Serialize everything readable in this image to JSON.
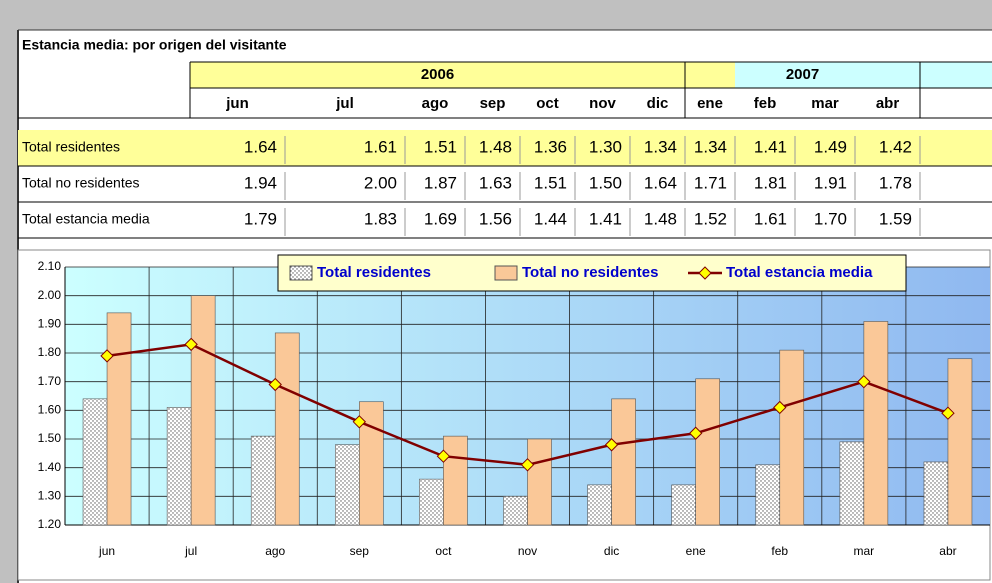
{
  "table": {
    "title": "Estancia media: por origen del visitante",
    "years": [
      {
        "label": "2006",
        "span": 7
      },
      {
        "label": "2007",
        "span": 4
      }
    ],
    "months": [
      "jun",
      "jul",
      "ago",
      "sep",
      "oct",
      "nov",
      "dic",
      "ene",
      "feb",
      "mar",
      "abr"
    ],
    "rows": [
      {
        "label": "Total residentes",
        "cells": [
          "1.64",
          "1.61",
          "1.51",
          "1.48",
          "1.36",
          "1.30",
          "1.34",
          "1.34",
          "1.41",
          "1.49",
          "1.42"
        ]
      },
      {
        "label": "Total no residentes",
        "cells": [
          "1.94",
          "2.00",
          "1.87",
          "1.63",
          "1.51",
          "1.50",
          "1.64",
          "1.71",
          "1.81",
          "1.91",
          "1.78"
        ]
      },
      {
        "label": "Total estancia media",
        "cells": [
          "1.79",
          "1.83",
          "1.69",
          "1.56",
          "1.44",
          "1.41",
          "1.48",
          "1.52",
          "1.61",
          "1.70",
          "1.59"
        ]
      }
    ]
  },
  "chart_data": {
    "type": "bar",
    "categories": [
      "jun",
      "jul",
      "ago",
      "sep",
      "oct",
      "nov",
      "dic",
      "ene",
      "feb",
      "mar",
      "abr"
    ],
    "series": [
      {
        "name": "Total residentes",
        "type": "bar",
        "color": "#ffffff",
        "values": [
          1.64,
          1.61,
          1.51,
          1.48,
          1.36,
          1.3,
          1.34,
          1.34,
          1.41,
          1.49,
          1.42
        ]
      },
      {
        "name": "Total no residentes",
        "type": "bar",
        "color": "#fac898",
        "values": [
          1.94,
          2.0,
          1.87,
          1.63,
          1.51,
          1.5,
          1.64,
          1.71,
          1.81,
          1.91,
          1.78
        ]
      },
      {
        "name": "Total estancia media",
        "type": "line",
        "color": "#800000",
        "marker_color": "#ffff00",
        "values": [
          1.79,
          1.83,
          1.69,
          1.56,
          1.44,
          1.41,
          1.48,
          1.52,
          1.61,
          1.7,
          1.59
        ]
      }
    ],
    "ylim": [
      1.2,
      2.1
    ],
    "yticks": [
      {
        "value": 1.2,
        "label": "1.20"
      },
      {
        "value": 1.3,
        "label": "1.30"
      },
      {
        "value": 1.4,
        "label": "1.40"
      },
      {
        "value": 1.5,
        "label": "1.50"
      },
      {
        "value": 1.6,
        "label": "1.60"
      },
      {
        "value": 1.7,
        "label": "1.70"
      },
      {
        "value": 1.8,
        "label": "1.80"
      },
      {
        "value": 1.9,
        "label": "1.90"
      },
      {
        "value": 2.0,
        "label": "2.00"
      },
      {
        "value": 2.1,
        "label": "2.10"
      }
    ],
    "grid": true,
    "legend": "top"
  }
}
